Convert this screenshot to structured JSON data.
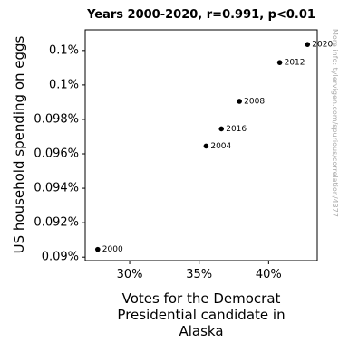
{
  "chart_data": {
    "type": "scatter",
    "title": "Years 2000-2020, r=0.991, p<0.01",
    "xlabel": [
      "Votes for the Democrat",
      "Presidential candidate in",
      "Alaska"
    ],
    "ylabel": "US household spending on eggs",
    "xlim": [
      26.8,
      43.5
    ],
    "ylim": [
      0.0898,
      0.1032
    ],
    "x_ticks": [
      {
        "value": 30,
        "label": "30%"
      },
      {
        "value": 35,
        "label": "35%"
      },
      {
        "value": 40,
        "label": "40%"
      }
    ],
    "y_ticks": [
      {
        "value": 0.09,
        "label": "0.09%"
      },
      {
        "value": 0.092,
        "label": "0.092%"
      },
      {
        "value": 0.094,
        "label": "0.094%"
      },
      {
        "value": 0.096,
        "label": "0.096%"
      },
      {
        "value": 0.098,
        "label": "0.098%"
      },
      {
        "value": 0.1,
        "label": "0.1%"
      },
      {
        "value": 0.102,
        "label": "0.1%"
      },
      {
        "value": 0.104,
        "label": "0.1%"
      }
    ],
    "points": [
      {
        "label": "2000",
        "x": 27.7,
        "y": 0.09045
      },
      {
        "label": "2004",
        "x": 35.5,
        "y": 0.09645
      },
      {
        "label": "2008",
        "x": 37.9,
        "y": 0.09905
      },
      {
        "label": "2012",
        "x": 40.8,
        "y": 0.1013
      },
      {
        "label": "2016",
        "x": 36.6,
        "y": 0.09745
      },
      {
        "label": "2020",
        "x": 42.8,
        "y": 0.10235
      }
    ],
    "grid": false,
    "marker_color": "#000000"
  },
  "watermark": "More info: tylervigen.com/spurious/correlation/4377"
}
